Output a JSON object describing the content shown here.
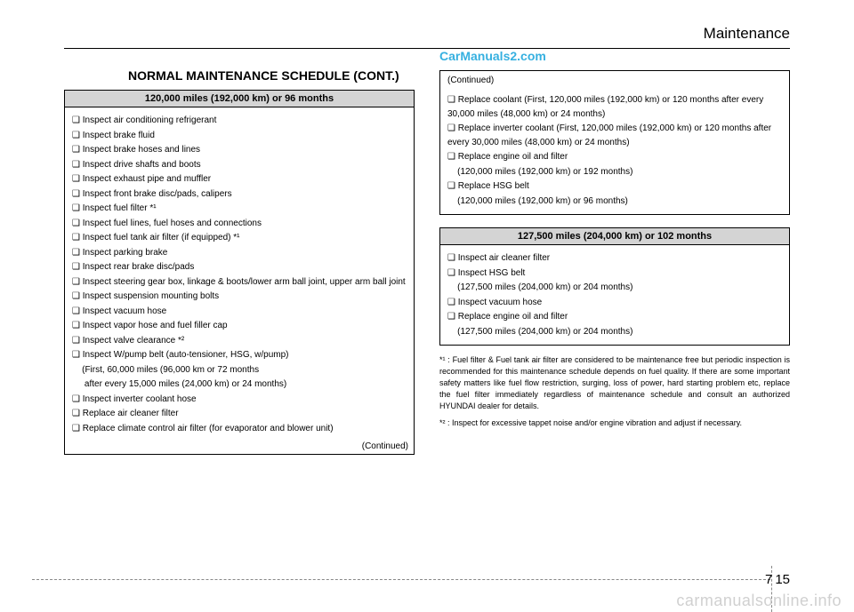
{
  "header": {
    "section": "Maintenance"
  },
  "watermarks": {
    "top": "CarManuals2.com",
    "bottom": "carmanualsonline.info"
  },
  "title": "NORMAL MAINTENANCE SCHEDULE (CONT.)",
  "left": {
    "header": "120,000 miles (192,000 km) or 96 months",
    "items": [
      "❑ Inspect air conditioning refrigerant",
      "❑ Inspect brake fluid",
      "❑ Inspect brake hoses and lines",
      "❑ Inspect drive shafts and boots",
      "❑ Inspect exhaust pipe and muffler",
      "❑ Inspect front brake disc/pads, calipers",
      "❑ Inspect fuel filter *¹",
      "❑ Inspect fuel lines, fuel hoses and connections",
      "❑ Inspect fuel tank air filter (if equipped) *¹",
      "❑ Inspect parking brake",
      "❑ Inspect rear brake disc/pads",
      "❑ Inspect steering gear box, linkage & boots/lower arm ball joint, upper arm ball joint",
      "❑ Inspect suspension mounting bolts",
      "❑ Inspect vacuum hose",
      "❑ Inspect vapor hose and fuel filler cap",
      "❑ Inspect valve clearance *²",
      "❑ Inspect W/pump belt (auto-tensioner, HSG, w/pump)",
      "    (First, 60,000 miles (96,000 km or 72 months",
      "     after every 15,000 miles (24,000 km) or 24 months)",
      "❑ Inspect inverter coolant hose",
      "❑ Replace air cleaner filter",
      "❑ Replace climate control air filter (for evaporator and blower unit)"
    ],
    "continued": "(Continued)"
  },
  "rightTop": {
    "continued": "(Continued)",
    "items": [
      "❑ Replace coolant (First, 120,000 miles (192,000 km) or 120 months after every 30,000 miles (48,000 km) or 24 months)",
      "❑ Replace inverter coolant (First, 120,000 miles (192,000 km) or 120 months after every 30,000 miles (48,000 km) or 24 months)",
      "❑ Replace engine oil and filter",
      "    (120,000 miles (192,000 km) or 192 months)",
      "❑ Replace HSG belt",
      "    (120,000 miles (192,000 km) or 96 months)"
    ]
  },
  "rightBottom": {
    "header": "127,500 miles (204,000 km) or 102 months",
    "items": [
      "❑ Inspect air cleaner filter",
      "❑ Inspect HSG belt",
      "    (127,500 miles (204,000 km) or 204 months)",
      "❑ Inspect vacuum hose",
      "❑ Replace engine oil and filter",
      "    (127,500 miles (204,000 km) or 204 months)"
    ]
  },
  "footnotes": [
    "*¹ : Fuel filter & Fuel tank air filter are considered to be maintenance free but periodic inspection is recommended for this maintenance schedule depends on fuel quality. If there are some important safety matters like fuel flow restriction, surging, loss of power, hard starting problem etc, replace the fuel filter immediately regardless of maintenance schedule and consult an authorized HYUNDAI dealer for details.",
    "*² : Inspect for excessive tappet noise and/or engine vibration and adjust if necessary."
  ],
  "pageNumber": {
    "chapter": "7",
    "page": "15"
  }
}
